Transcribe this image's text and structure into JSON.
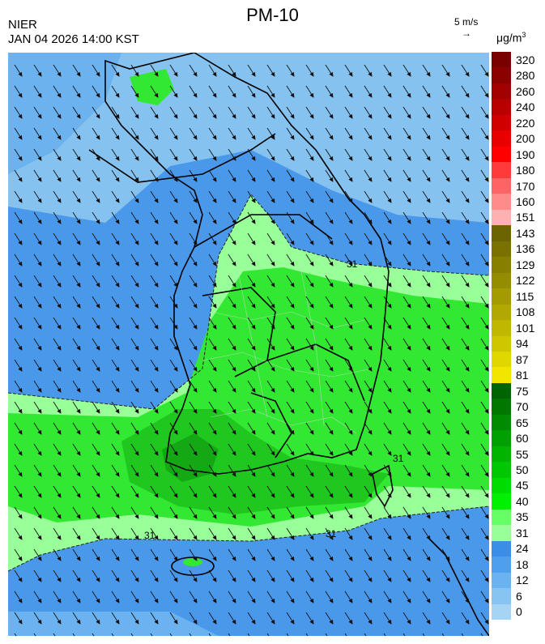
{
  "header": {
    "agency": "NIER",
    "timestamp": "JAN 04 2026 14:00 KST",
    "title": "PM-10",
    "wind_reference": "5 m/s",
    "wind_arrow": "→",
    "unit": "μg/m",
    "unit_exp": "3"
  },
  "legend": {
    "ticks": [
      "320",
      "280",
      "260",
      "240",
      "220",
      "200",
      "190",
      "180",
      "170",
      "160",
      "151",
      "143",
      "136",
      "129",
      "122",
      "115",
      "108",
      "101",
      "94",
      "87",
      "81",
      "75",
      "70",
      "65",
      "60",
      "55",
      "50",
      "45",
      "40",
      "35",
      "31",
      "24",
      "18",
      "12",
      "6",
      "0"
    ],
    "colors": [
      "#7a0000",
      "#8c0000",
      "#a30000",
      "#b80000",
      "#cf0000",
      "#e80000",
      "#ff0000",
      "#ff3a3a",
      "#ff6464",
      "#ff8b8b",
      "#ffb0b0",
      "#6b6400",
      "#7a7200",
      "#877f00",
      "#958d00",
      "#a39b00",
      "#b1a900",
      "#c0b700",
      "#d0c600",
      "#e0d600",
      "#f2e600",
      "#006400",
      "#007800",
      "#008c00",
      "#00a000",
      "#00b400",
      "#00c800",
      "#00dc00",
      "#00f000",
      "#66ff66",
      "#99ff99",
      "#3a8ee8",
      "#4ea0ee",
      "#6ab2f0",
      "#88c4f2",
      "#a6d4f4"
    ]
  },
  "map_labels": {
    "contour": "31"
  }
}
